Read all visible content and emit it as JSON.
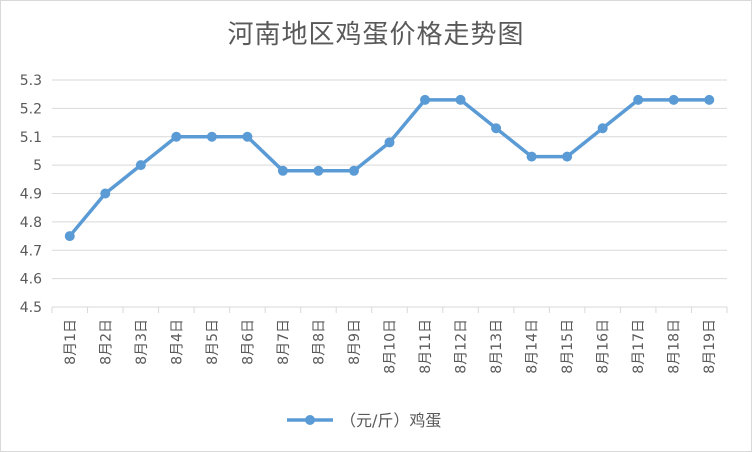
{
  "chart_data": {
    "type": "line",
    "title": "河南地区鸡蛋价格走势图",
    "categories": [
      "8月1日",
      "8月2日",
      "8月3日",
      "8月4日",
      "8月5日",
      "8月6日",
      "8月7日",
      "8月8日",
      "8月9日",
      "8月10日",
      "8月11日",
      "8月12日",
      "8月13日",
      "8月14日",
      "8月15日",
      "8月16日",
      "8月17日",
      "8月18日",
      "8月19日"
    ],
    "series": [
      {
        "name": "（元/斤）鸡蛋",
        "color": "#5b9bd5",
        "values": [
          4.75,
          4.9,
          5.0,
          5.1,
          5.1,
          5.1,
          4.98,
          4.98,
          4.98,
          5.08,
          5.23,
          5.23,
          5.13,
          5.03,
          5.03,
          5.13,
          5.23,
          5.23,
          5.23
        ]
      }
    ],
    "ylim": [
      4.5,
      5.3
    ],
    "yticks": [
      "4.5",
      "4.6",
      "4.7",
      "4.8",
      "4.9",
      "5",
      "5.1",
      "5.2",
      "5.3"
    ],
    "grid": true,
    "legend": "bottom",
    "xlabel": "",
    "ylabel": ""
  }
}
